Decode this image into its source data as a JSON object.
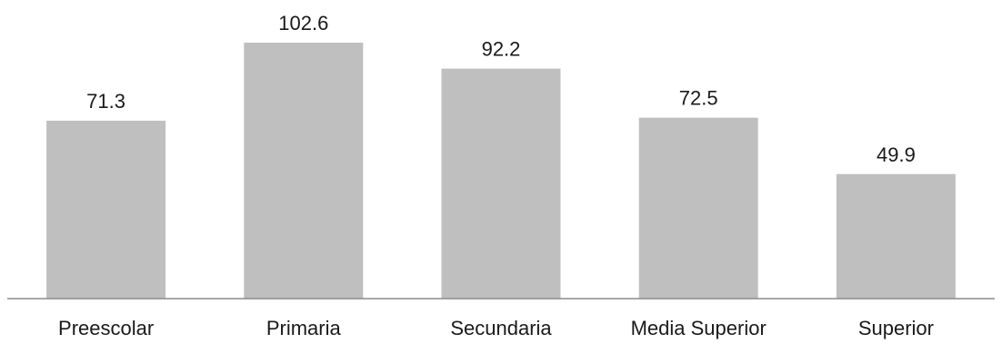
{
  "chart_data": {
    "type": "bar",
    "categories": [
      "Preescolar",
      "Primaria",
      "Secundaria",
      "Media Superior",
      "Superior"
    ],
    "values": [
      71.3,
      102.6,
      92.2,
      72.5,
      49.9
    ],
    "value_labels": [
      "71.3",
      "102.6",
      "92.2",
      "72.5",
      "49.9"
    ],
    "title": "",
    "xlabel": "",
    "ylabel": "",
    "ylim": [
      0,
      108
    ],
    "grid": false,
    "legend": "none",
    "colors": {
      "bar": "#bfbfbf",
      "axis": "#8c8c8c",
      "text": "#1a1a1a"
    }
  }
}
